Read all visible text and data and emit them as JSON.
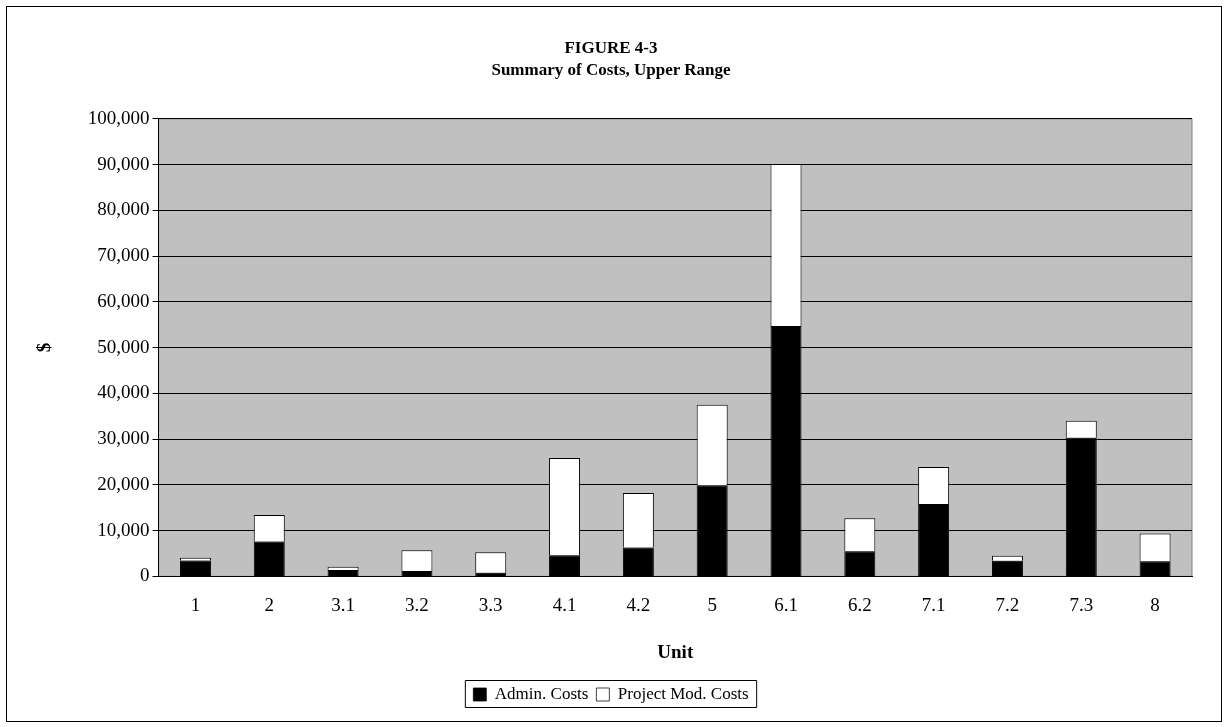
{
  "chart_data": {
    "type": "bar",
    "title": "FIGURE 4-3",
    "subtitle": "Summary of Costs, Upper Range",
    "xlabel": "Unit",
    "ylabel": "$",
    "categories": [
      "1",
      "2",
      "3.1",
      "3.2",
      "3.3",
      "4.1",
      "4.2",
      "5",
      "6.1",
      "6.2",
      "7.1",
      "7.2",
      "7.3",
      "8"
    ],
    "series": [
      {
        "name": "Admin. Costs",
        "color": "#000000",
        "values": [
          3500,
          7600,
          1400,
          1200,
          800,
          4600,
          6300,
          19900,
          54700,
          5500,
          15800,
          3400,
          30300,
          3300
        ]
      },
      {
        "name": "Project Mod. Costs",
        "color": "#ffffff",
        "values": [
          600,
          5800,
          700,
          4500,
          4500,
          21300,
          11900,
          17600,
          35400,
          7200,
          8100,
          1100,
          3700,
          6100
        ]
      }
    ],
    "stacked": true,
    "ylim": [
      0,
      100000
    ],
    "yticks": [
      0,
      {
        "value": 10000,
        "label": "10,000"
      },
      {
        "value": 20000,
        "label": "20,000"
      },
      {
        "value": 30000,
        "label": "30,000"
      },
      {
        "value": 40000,
        "label": "40,000"
      },
      {
        "value": 50000,
        "label": "50,000"
      },
      {
        "value": 60000,
        "label": "60,000"
      },
      {
        "value": 70000,
        "label": "70,000"
      },
      {
        "value": 80000,
        "label": "80,000"
      },
      {
        "value": 90000,
        "label": "90,000"
      },
      {
        "value": 100000,
        "label": "100,000"
      }
    ],
    "grid": "y",
    "legend": "bottom"
  }
}
